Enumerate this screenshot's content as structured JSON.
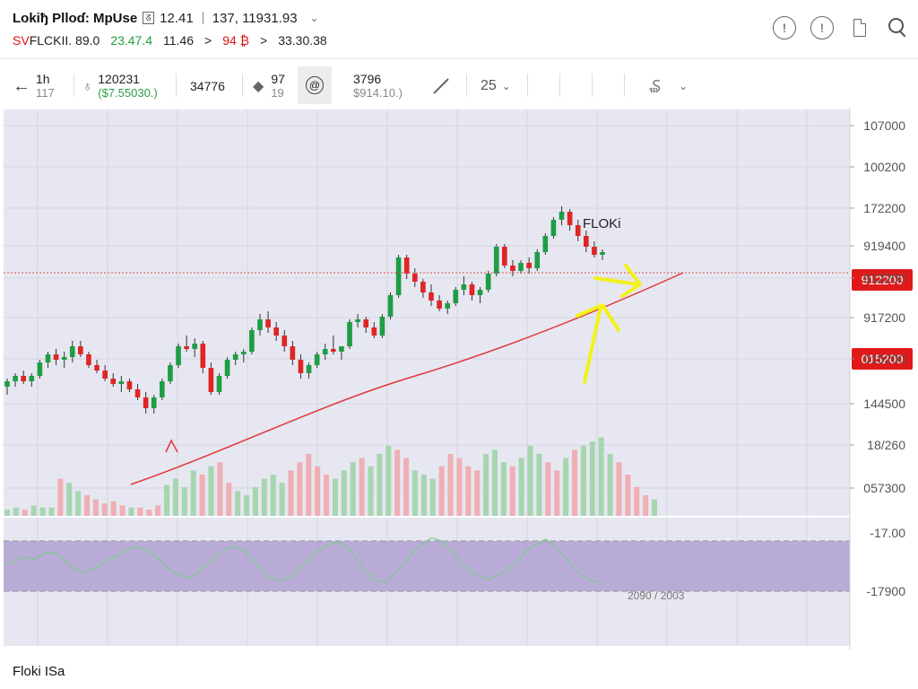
{
  "header": {
    "title": "Lokiђ Plloɗ: MpUse",
    "title_box": "ᘔ",
    "stat1": "12.41",
    "stat2": "137, 11931.93",
    "chevron": "⌄",
    "symbol_prefix": "SV",
    "symbol_main": "FLCKII. 89.0",
    "price_green": "23.47.4",
    "val1": "11.46",
    "val_arrow": ">",
    "val_red": "94 ₿",
    "val_arrow2": ">",
    "val_last": "33.30.38",
    "icons": [
      "info-icon",
      "alert-icon",
      "document-icon",
      "search-icon"
    ]
  },
  "toolbar": {
    "back": "←",
    "interval": "1h",
    "interval_sub": "117",
    "pin_value": "120231",
    "pin_sub": "($7.55030.)",
    "mid_value": "34776",
    "eth_value": "97",
    "eth_sub": "19",
    "at_symbol": "@",
    "vol_value": "3796",
    "vol_sub": "$914.10.)",
    "pen": "⁄",
    "count": "25",
    "count_chev": "⌄",
    "currency": "₷",
    "currency_chev": "⌄"
  },
  "chart_data": {
    "type": "candlestick",
    "annotation_label": "FLOKi",
    "price_axis_labels": [
      "107000",
      "100200",
      "172200",
      "919400",
      "912200",
      "917200",
      "015200",
      "144500",
      "18/260",
      "057300"
    ],
    "indicator_axis_labels": [
      "-17.00",
      "-17900"
    ],
    "price_marker_1": "912200",
    "price_marker_2": "015200",
    "indicator_date_label": "2090 / 2003",
    "y_range": [
      0,
      100
    ],
    "candles": [
      {
        "o": 33,
        "h": 36,
        "l": 30,
        "c": 35
      },
      {
        "o": 35,
        "h": 38,
        "l": 33,
        "c": 37
      },
      {
        "o": 37,
        "h": 39,
        "l": 34,
        "c": 35
      },
      {
        "o": 35,
        "h": 38,
        "l": 33,
        "c": 37
      },
      {
        "o": 37,
        "h": 43,
        "l": 36,
        "c": 42
      },
      {
        "o": 42,
        "h": 46,
        "l": 40,
        "c": 45
      },
      {
        "o": 45,
        "h": 47,
        "l": 41,
        "c": 43
      },
      {
        "o": 43,
        "h": 46,
        "l": 40,
        "c": 44
      },
      {
        "o": 44,
        "h": 50,
        "l": 42,
        "c": 48
      },
      {
        "o": 48,
        "h": 50,
        "l": 44,
        "c": 45
      },
      {
        "o": 45,
        "h": 46,
        "l": 40,
        "c": 41
      },
      {
        "o": 41,
        "h": 43,
        "l": 38,
        "c": 39
      },
      {
        "o": 39,
        "h": 41,
        "l": 35,
        "c": 36
      },
      {
        "o": 36,
        "h": 38,
        "l": 33,
        "c": 34
      },
      {
        "o": 34,
        "h": 37,
        "l": 31,
        "c": 35
      },
      {
        "o": 35,
        "h": 36,
        "l": 31,
        "c": 32
      },
      {
        "o": 32,
        "h": 34,
        "l": 28,
        "c": 29
      },
      {
        "o": 29,
        "h": 31,
        "l": 23,
        "c": 25
      },
      {
        "o": 25,
        "h": 30,
        "l": 23,
        "c": 29
      },
      {
        "o": 29,
        "h": 36,
        "l": 28,
        "c": 35
      },
      {
        "o": 35,
        "h": 42,
        "l": 34,
        "c": 41
      },
      {
        "o": 41,
        "h": 49,
        "l": 40,
        "c": 48
      },
      {
        "o": 48,
        "h": 52,
        "l": 46,
        "c": 47
      },
      {
        "o": 47,
        "h": 51,
        "l": 44,
        "c": 49
      },
      {
        "o": 49,
        "h": 50,
        "l": 38,
        "c": 40
      },
      {
        "o": 40,
        "h": 42,
        "l": 30,
        "c": 31
      },
      {
        "o": 31,
        "h": 38,
        "l": 30,
        "c": 37
      },
      {
        "o": 37,
        "h": 44,
        "l": 36,
        "c": 43
      },
      {
        "o": 43,
        "h": 46,
        "l": 41,
        "c": 45
      },
      {
        "o": 45,
        "h": 47,
        "l": 42,
        "c": 46
      },
      {
        "o": 46,
        "h": 55,
        "l": 45,
        "c": 54
      },
      {
        "o": 54,
        "h": 60,
        "l": 52,
        "c": 58
      },
      {
        "o": 58,
        "h": 61,
        "l": 53,
        "c": 55
      },
      {
        "o": 55,
        "h": 57,
        "l": 50,
        "c": 52
      },
      {
        "o": 52,
        "h": 54,
        "l": 46,
        "c": 48
      },
      {
        "o": 48,
        "h": 50,
        "l": 41,
        "c": 43
      },
      {
        "o": 43,
        "h": 45,
        "l": 36,
        "c": 38
      },
      {
        "o": 38,
        "h": 42,
        "l": 36,
        "c": 41
      },
      {
        "o": 41,
        "h": 46,
        "l": 40,
        "c": 45
      },
      {
        "o": 45,
        "h": 49,
        "l": 43,
        "c": 47
      },
      {
        "o": 47,
        "h": 52,
        "l": 45,
        "c": 46
      },
      {
        "o": 46,
        "h": 48,
        "l": 43,
        "c": 48
      },
      {
        "o": 48,
        "h": 58,
        "l": 47,
        "c": 57
      },
      {
        "o": 57,
        "h": 60,
        "l": 55,
        "c": 58
      },
      {
        "o": 58,
        "h": 59,
        "l": 53,
        "c": 55
      },
      {
        "o": 55,
        "h": 57,
        "l": 51,
        "c": 52
      },
      {
        "o": 52,
        "h": 60,
        "l": 51,
        "c": 59
      },
      {
        "o": 59,
        "h": 68,
        "l": 58,
        "c": 67
      },
      {
        "o": 67,
        "h": 82,
        "l": 66,
        "c": 81
      },
      {
        "o": 81,
        "h": 82,
        "l": 73,
        "c": 75
      },
      {
        "o": 75,
        "h": 77,
        "l": 70,
        "c": 72
      },
      {
        "o": 72,
        "h": 73,
        "l": 66,
        "c": 68
      },
      {
        "o": 68,
        "h": 71,
        "l": 63,
        "c": 65
      },
      {
        "o": 65,
        "h": 67,
        "l": 61,
        "c": 62
      },
      {
        "o": 62,
        "h": 65,
        "l": 60,
        "c": 64
      },
      {
        "o": 64,
        "h": 70,
        "l": 63,
        "c": 69
      },
      {
        "o": 69,
        "h": 74,
        "l": 67,
        "c": 71
      },
      {
        "o": 71,
        "h": 72,
        "l": 65,
        "c": 67
      },
      {
        "o": 67,
        "h": 70,
        "l": 64,
        "c": 69
      },
      {
        "o": 69,
        "h": 76,
        "l": 68,
        "c": 75
      },
      {
        "o": 75,
        "h": 86,
        "l": 74,
        "c": 85
      },
      {
        "o": 85,
        "h": 86,
        "l": 77,
        "c": 78
      },
      {
        "o": 78,
        "h": 80,
        "l": 74,
        "c": 76
      },
      {
        "o": 76,
        "h": 80,
        "l": 75,
        "c": 79
      },
      {
        "o": 79,
        "h": 81,
        "l": 75,
        "c": 77
      },
      {
        "o": 77,
        "h": 84,
        "l": 76,
        "c": 83
      },
      {
        "o": 83,
        "h": 90,
        "l": 82,
        "c": 89
      },
      {
        "o": 89,
        "h": 96,
        "l": 88,
        "c": 95
      },
      {
        "o": 95,
        "h": 100,
        "l": 93,
        "c": 98
      },
      {
        "o": 98,
        "h": 99,
        "l": 91,
        "c": 93
      },
      {
        "o": 93,
        "h": 95,
        "l": 87,
        "c": 89
      },
      {
        "o": 89,
        "h": 91,
        "l": 83,
        "c": 85
      },
      {
        "o": 85,
        "h": 87,
        "l": 81,
        "c": 82
      },
      {
        "o": 82,
        "h": 84,
        "l": 80,
        "c": 83
      }
    ],
    "volumes": [
      3,
      4,
      3,
      5,
      4,
      4,
      18,
      16,
      12,
      10,
      8,
      6,
      7,
      5,
      4,
      4,
      3,
      5,
      15,
      18,
      14,
      22,
      20,
      24,
      26,
      16,
      12,
      10,
      14,
      18,
      20,
      16,
      22,
      26,
      30,
      24,
      20,
      18,
      22,
      26,
      28,
      24,
      30,
      34,
      32,
      28,
      22,
      20,
      18,
      24,
      30,
      28,
      24,
      22,
      30,
      32,
      26,
      24,
      28,
      34,
      30,
      26,
      22,
      28,
      32,
      34,
      36,
      38,
      30,
      26,
      20,
      14,
      10,
      8
    ],
    "indicator_line": [
      50,
      55,
      62,
      58,
      66,
      68,
      60,
      48,
      40,
      44,
      50,
      58,
      64,
      72,
      76,
      70,
      60,
      48,
      38,
      32,
      36,
      48,
      60,
      70,
      76,
      72,
      60,
      44,
      32,
      28,
      34,
      44,
      58,
      70,
      78,
      82,
      76,
      60,
      42,
      30,
      26,
      36,
      52,
      68,
      80,
      88,
      84,
      70,
      54,
      42,
      34,
      30,
      36,
      44,
      56,
      70,
      80,
      86,
      78,
      62,
      46,
      34,
      28,
      26
    ]
  },
  "footer": {
    "caption": "Floki ISa"
  }
}
